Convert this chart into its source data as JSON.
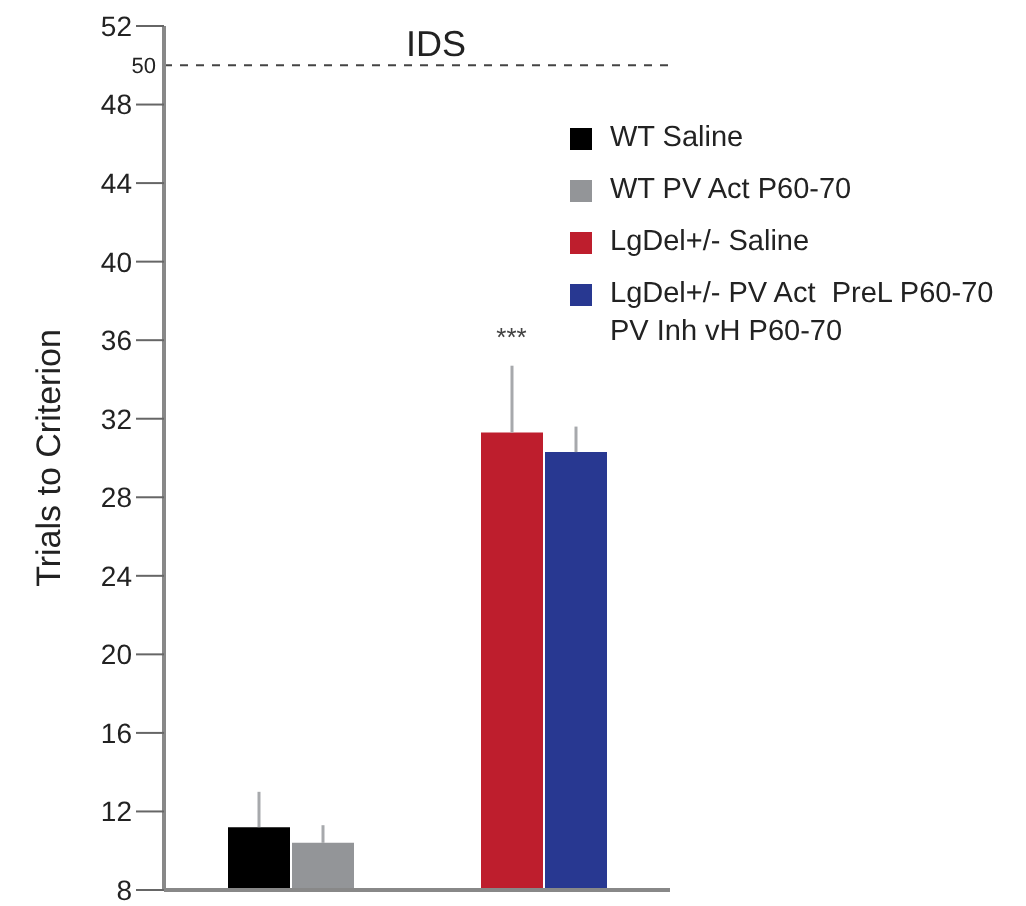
{
  "chart_data": {
    "type": "bar",
    "title": "IDS",
    "ylabel": "Trials to Criterion",
    "categories": [
      null,
      null
    ],
    "series": [
      {
        "name": "WT Saline",
        "color": "#000000",
        "values": [
          11.2,
          null
        ],
        "errors": [
          [
            11.2,
            13.0
          ],
          null
        ]
      },
      {
        "name": "WT PV Act P60-70",
        "color": "#939598",
        "values": [
          10.4,
          null
        ],
        "errors": [
          [
            10.4,
            11.3
          ],
          null
        ]
      },
      {
        "name": "LgDel+/- Saline",
        "color": "#be1e2d",
        "values": [
          null,
          31.3
        ],
        "errors": [
          null,
          [
            31.3,
            34.7
          ]
        ]
      },
      {
        "name": "LgDel+/- PV Act  PreL P60-70 PV Inh vH P60-70",
        "color": "#283891",
        "values": [
          null,
          30.3
        ],
        "errors": [
          null,
          [
            30.3,
            31.6
          ]
        ]
      }
    ],
    "ylim": [
      8,
      52
    ],
    "yticks": [
      8,
      12,
      16,
      20,
      24,
      28,
      32,
      36,
      40,
      44,
      48,
      52
    ],
    "ref_lines": [
      {
        "axis": "y",
        "value": 50,
        "label": "50",
        "line_style": "dashed",
        "color": "#444444"
      }
    ],
    "annotations": [
      "***"
    ],
    "legend": "top right",
    "grid": false
  }
}
